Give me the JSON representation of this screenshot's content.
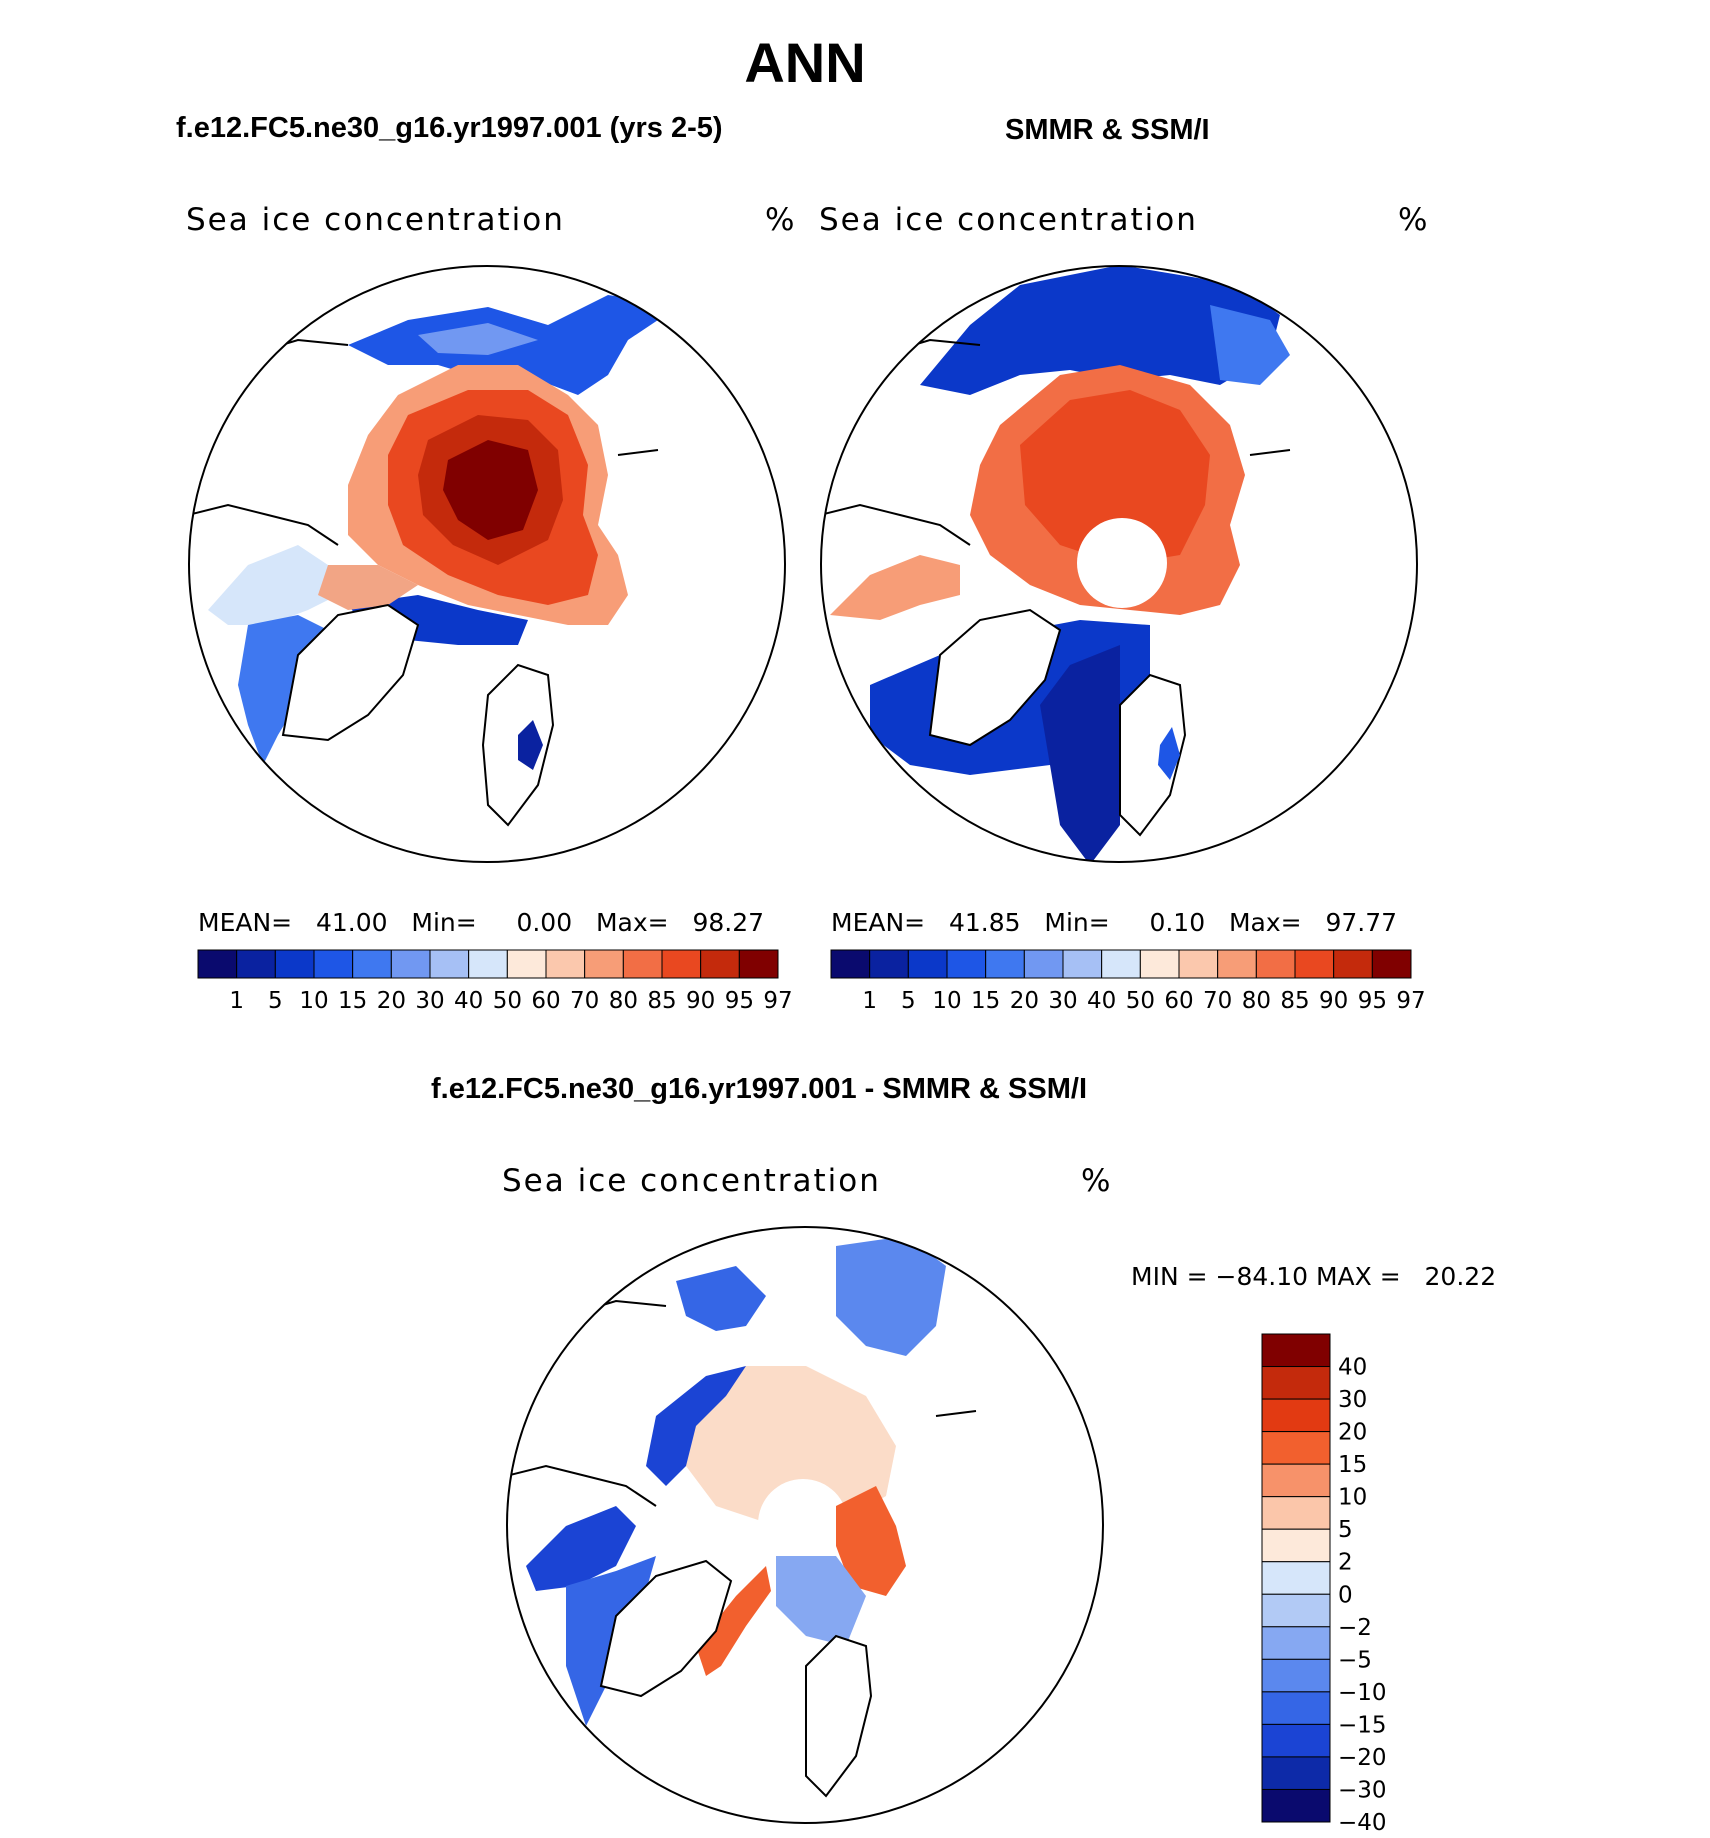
{
  "title": "ANN",
  "panels": [
    {
      "case_title": "f.e12.FC5.ne30_g16.yr1997.001 (yrs 2-5)",
      "field_label": "Sea ice concentration",
      "units": "%",
      "stats": {
        "mean_label": "MEAN=",
        "mean": "41.00",
        "min_label": "Min=",
        "min": "0.00",
        "max_label": "Max=",
        "max": "98.27"
      }
    },
    {
      "case_title": "SMMR & SSM/I",
      "field_label": "Sea ice concentration",
      "units": "%",
      "stats": {
        "mean_label": "MEAN=",
        "mean": "41.85",
        "min_label": "Min=",
        "min": "0.10",
        "max_label": "Max=",
        "max": "97.77"
      }
    }
  ],
  "diff_panel": {
    "case_title": "f.e12.FC5.ne30_g16.yr1997.001 - SMMR & SSM/I",
    "field_label": "Sea ice concentration",
    "units": "%",
    "minmax": {
      "min_label": "MIN =",
      "min": "−84.10",
      "max_label": "MAX =",
      "max": "20.22"
    }
  },
  "abs_colorbar": {
    "ticks": [
      "1",
      "5",
      "10",
      "15",
      "20",
      "30",
      "40",
      "50",
      "60",
      "70",
      "80",
      "85",
      "90",
      "95",
      "97"
    ],
    "colors": [
      "#0a0a6e",
      "#0a22a0",
      "#0b38c9",
      "#1e56e6",
      "#3f78f0",
      "#7198f2",
      "#a6c0f5",
      "#d6e6fa",
      "#fde9da",
      "#fbc8ad",
      "#f79d77",
      "#f26e45",
      "#e94820",
      "#c42a0c",
      "#800000"
    ]
  },
  "diff_colorbar": {
    "ticks": [
      "40",
      "30",
      "20",
      "15",
      "10",
      "5",
      "2",
      "0",
      "−2",
      "−5",
      "−10",
      "−15",
      "−20",
      "−30",
      "−40"
    ],
    "colors": [
      "#800000",
      "#c42a0c",
      "#e23a12",
      "#f2602e",
      "#f7926a",
      "#fbc6aa",
      "#fde9da",
      "#d6e6fa",
      "#b2caf5",
      "#86a8f2",
      "#5b88ee",
      "#3566e6",
      "#1b44d4",
      "#0d2aa8",
      "#0a0a6e"
    ]
  }
}
